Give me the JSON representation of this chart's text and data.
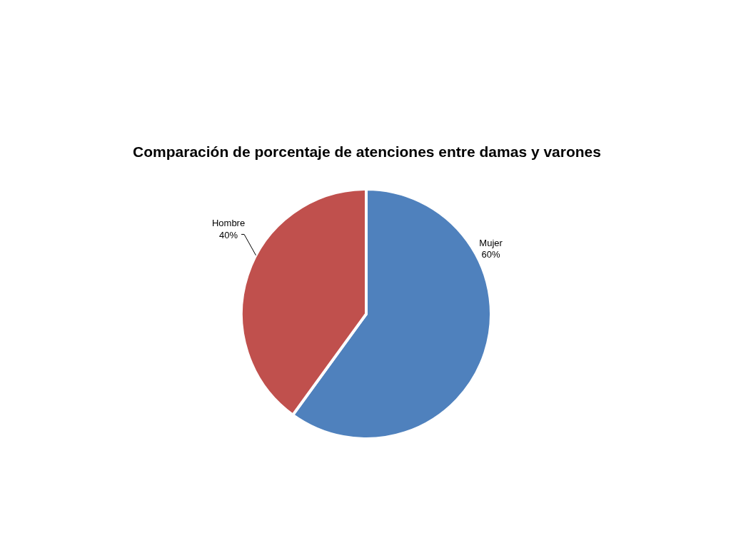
{
  "chart_data": {
    "type": "pie",
    "title": "Comparación de porcentaje de atenciones entre damas y varones",
    "categories": [
      "Mujer",
      "Hombre"
    ],
    "values": [
      60,
      40
    ],
    "colors": [
      "#4f81bd",
      "#c0504d"
    ],
    "value_labels": [
      "60%",
      "40%"
    ]
  }
}
